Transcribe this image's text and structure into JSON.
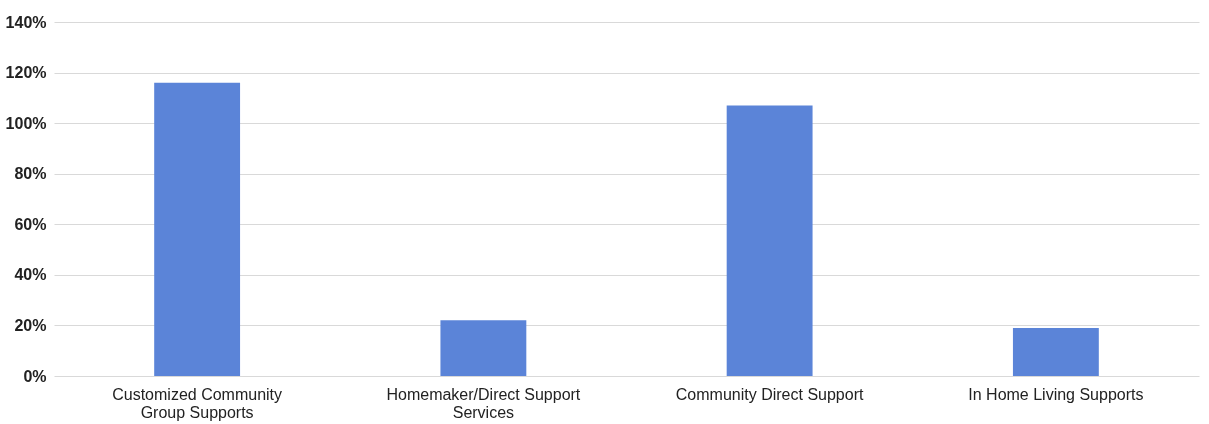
{
  "chart_data": {
    "type": "bar",
    "categories": [
      "Customized Community Group Supports",
      "Homemaker/Direct Support Services",
      "Community Direct Support",
      "In Home Living Supports"
    ],
    "values": [
      116,
      22,
      107,
      19
    ],
    "color": "#5b84d8",
    "ylim": [
      0,
      140
    ],
    "yticks": [
      {
        "value": 0,
        "label": "0%"
      },
      {
        "value": 20,
        "label": "20%"
      },
      {
        "value": 40,
        "label": "40%"
      },
      {
        "value": 60,
        "label": "60%"
      },
      {
        "value": 80,
        "label": "80%"
      },
      {
        "value": 100,
        "label": "100%"
      },
      {
        "value": 120,
        "label": "120%"
      },
      {
        "value": 140,
        "label": "140%"
      }
    ],
    "grid": true
  }
}
